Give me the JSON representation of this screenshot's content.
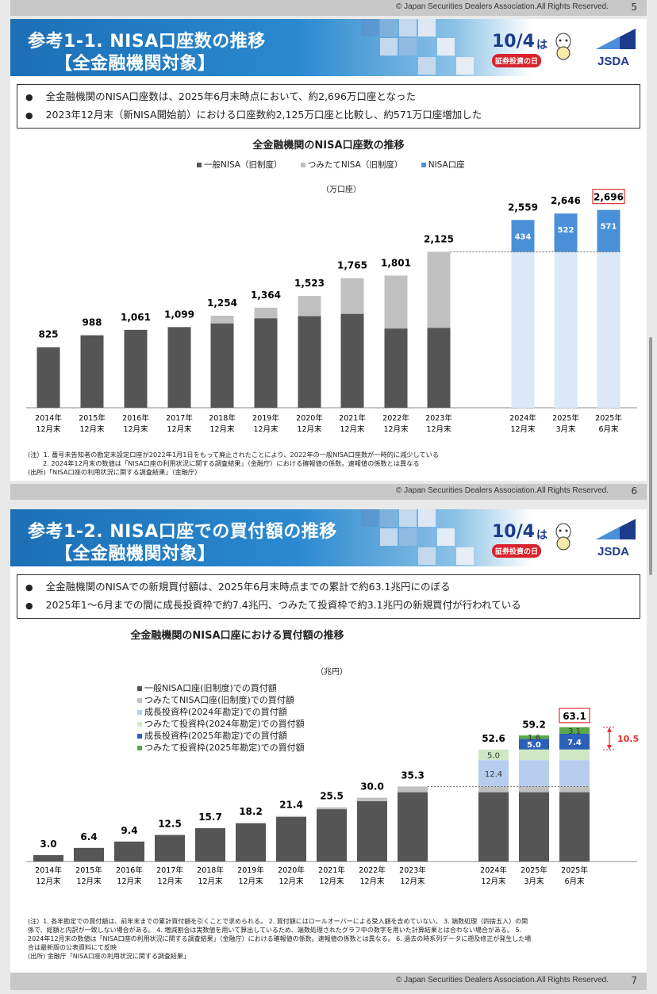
{
  "footer": {
    "copyright": "© Japan Securities Dealers Association.All Rights Reserved.",
    "pages": [
      "5",
      "6",
      "7"
    ]
  },
  "logos": {
    "day_number": "10/4",
    "day_suffix": "は",
    "day_tag": "証券投資の日",
    "jsda": "JSDA"
  },
  "colors": {
    "dark": "#555555",
    "gray": "#c0c0c0",
    "nisa_blue": "#4a90d9",
    "nisa_light": "#dbe8f7",
    "growth_blue": "#2c5fb8",
    "growth_light": "#b7cdee",
    "tsumitate_green": "#5aa84a",
    "tsumitate_light": "#cfe8c4",
    "highlight_red": "#e03030"
  },
  "slide1": {
    "title_line1": "参考1-1. NISA口座数の推移",
    "title_line2": "【全金融機関対象】",
    "bullets": [
      "全金融機関のNISA口座数は、2025年6月末時点において、約2,696万口座となった",
      "2023年12月末（新NISA開始前）における口座数約2,125万口座と比較し、約571万口座増加した"
    ],
    "unit": "（万口座）",
    "notes": [
      "(注）1. 番号未告知者の勘定未設定口座が2022年1月1日をもって廃止されたことにより、2022年の一般NISA口座数が一時的に減少している",
      "　　 2. 2024年12月末の数値は「NISA口座の利用状況に関する調査結果」（金融庁）における確報値の係数。速報値の係数とは異なる",
      "(出所)「NISA口座の利用状況に関する調査結果」（金融庁）"
    ]
  },
  "slide2": {
    "title_line1": "参考1-2. NISA口座での買付額の推移",
    "title_line2": "【全金融機関対象】",
    "bullets": [
      "全金融機関のNISAでの新規買付額は、2025年6月末時点までの累計で約63.1兆円にのぼる",
      "2025年1～6月までの間に成長投資枠で約7.4兆円、つみたて投資枠で約3.1兆円の新規買付が行われている"
    ],
    "unit": "（兆円）",
    "notes": [
      "(注）1. 各年勘定での買付額は、前年末までの累計買付額を引くことで求められる。 2. 買付額にはロールオーバーによる受入額を含めていない。 3. 端数処理（四捨五入）の関",
      "係で、総額と内訳が一致しない場合がある。 4. 増減割合は実数値を用いて算出しているため、端数処理されたグラフ中の数字を用いた計算結果とは合わない場合がある。 5.",
      "2024年12月末の数値は「NISA口座の利用状況に関する調査結果」（金融庁）における確報値の係数。速報値の係数とは異なる。 6. 過去の時系列データに遡及修正が発生した場",
      "合は最新版の公表資料にて反映",
      "(出所) 金融庁「NISA口座の利用状況に関する調査結果」"
    ]
  },
  "chart_data": [
    {
      "type": "bar",
      "stacked": true,
      "title": "全金融機関のNISA口座数の推移",
      "unit": "万口座",
      "categories": [
        "2014年\n12月末",
        "2015年\n12月末",
        "2016年\n12月末",
        "2017年\n12月末",
        "2018年\n12月末",
        "2019年\n12月末",
        "2020年\n12月末",
        "2021年\n12月末",
        "2022年\n12月末",
        "2023年\n12月末",
        "2024年\n12月末",
        "2025年\n3月末",
        "2025年\n6月末"
      ],
      "totals": [
        825,
        988,
        1061,
        1099,
        1254,
        1364,
        1523,
        1765,
        1801,
        2125,
        2559,
        2646,
        2696
      ],
      "total_labels": [
        "825",
        "988",
        "1,061",
        "1,099",
        "1,254",
        "1,364",
        "1,523",
        "1,765",
        "1,801",
        "2,125",
        "2,559",
        "2,646",
        "2,696"
      ],
      "series": [
        {
          "name": "一般NISA（旧制度）",
          "values": [
            825,
            988,
            1061,
            1099,
            1150,
            1220,
            1250,
            1280,
            1080,
            1090,
            1090,
            1090,
            1090
          ]
        },
        {
          "name": "つみたてNISA（旧制度）",
          "values": [
            0,
            0,
            0,
            0,
            104,
            144,
            273,
            485,
            721,
            1035,
            1035,
            1035,
            1035
          ]
        },
        {
          "name": "NISA口座",
          "values": [
            0,
            0,
            0,
            0,
            0,
            0,
            0,
            0,
            0,
            0,
            434,
            522,
            571
          ]
        }
      ],
      "increment_labels": {
        "10": "434",
        "11": "522",
        "12": "571"
      },
      "highlight_index": 12,
      "ylim": [
        0,
        3000
      ]
    },
    {
      "type": "bar",
      "stacked": true,
      "title": "全金融機関のNISA口座における買付額の推移",
      "unit": "兆円",
      "categories": [
        "2014年\n12月末",
        "2015年\n12月末",
        "2016年\n12月末",
        "2017年\n12月末",
        "2018年\n12月末",
        "2019年\n12月末",
        "2020年\n12月末",
        "2021年\n12月末",
        "2022年\n12月末",
        "2023年\n12月末",
        "2024年\n12月末",
        "2025年\n3月末",
        "2025年\n6月末"
      ],
      "totals": [
        3.0,
        6.4,
        9.4,
        12.5,
        15.7,
        18.2,
        21.4,
        25.5,
        30.0,
        35.3,
        52.6,
        59.2,
        63.1
      ],
      "series": [
        {
          "name": "一般NISA口座(旧制度)での買付額",
          "values": [
            3.0,
            6.4,
            9.4,
            12.5,
            15.7,
            18.0,
            21.0,
            24.6,
            28.4,
            32.6,
            32.6,
            32.6,
            32.6
          ]
        },
        {
          "name": "つみたてNISA口座(旧制度)での買付額",
          "values": [
            0,
            0,
            0,
            0,
            0,
            0.2,
            0.4,
            0.9,
            1.6,
            2.7,
            2.7,
            2.7,
            2.7
          ]
        },
        {
          "name": "成長投資枠(2024年勘定)での買付額",
          "values": [
            0,
            0,
            0,
            0,
            0,
            0,
            0,
            0,
            0,
            0,
            12.4,
            12.4,
            12.4
          ]
        },
        {
          "name": "つみたて投資枠(2024年勘定)での買付額",
          "values": [
            0,
            0,
            0,
            0,
            0,
            0,
            0,
            0,
            0,
            0,
            5.0,
            5.0,
            5.0
          ]
        },
        {
          "name": "成長投資枠(2025年勘定)での買付額",
          "values": [
            0,
            0,
            0,
            0,
            0,
            0,
            0,
            0,
            0,
            0,
            0,
            5.0,
            7.4
          ]
        },
        {
          "name": "つみたて投資枠(2025年勘定)での買付額",
          "values": [
            0,
            0,
            0,
            0,
            0,
            0,
            0,
            0,
            0,
            0,
            0,
            1.6,
            3.1
          ]
        }
      ],
      "segment_labels": [
        {
          "index": 10,
          "series": 2,
          "label": "12.4"
        },
        {
          "index": 10,
          "series": 3,
          "label": "5.0"
        },
        {
          "index": 11,
          "series": 4,
          "label": "5.0"
        },
        {
          "index": 11,
          "series": 5,
          "label": "1.6"
        },
        {
          "index": 12,
          "series": 4,
          "label": "7.4"
        },
        {
          "index": 12,
          "series": 5,
          "label": "3.1"
        }
      ],
      "highlight_index": 12,
      "bracket_label": "10.5",
      "ylim": [
        0,
        70
      ]
    }
  ]
}
